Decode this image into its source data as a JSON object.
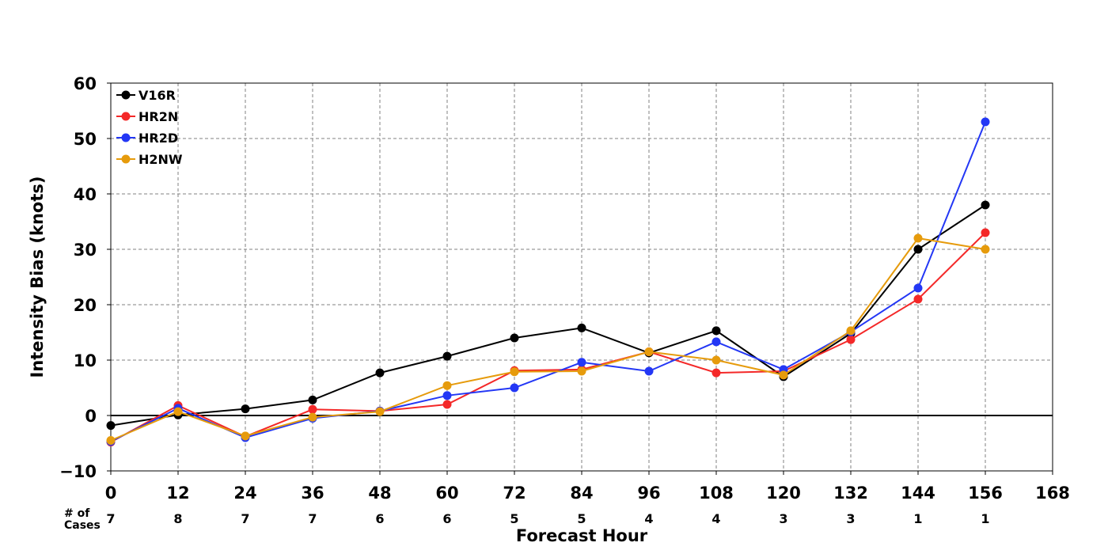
{
  "chart_data": {
    "type": "line",
    "title": "",
    "xlabel": "Forecast Hour",
    "ylabel": "Intensity Bias (knots)",
    "xlim": [
      0,
      168
    ],
    "ylim": [
      -10,
      60
    ],
    "x_ticks": [
      0,
      12,
      24,
      36,
      48,
      60,
      72,
      84,
      96,
      108,
      120,
      132,
      144,
      156,
      168
    ],
    "x_tick_labels": [
      "0",
      "12",
      "24",
      "36",
      "48",
      "60",
      "72",
      "84",
      "96",
      "108",
      "120",
      "132",
      "144",
      "156",
      "168"
    ],
    "y_ticks": [
      -10,
      0,
      10,
      20,
      30,
      40,
      50,
      60
    ],
    "y_tick_labels": [
      "−10",
      "0",
      "10",
      "20",
      "30",
      "40",
      "50",
      "60"
    ],
    "grid": true,
    "zero_line": true,
    "legend_position": "top-left",
    "x": [
      0,
      12,
      24,
      36,
      48,
      60,
      72,
      84,
      96,
      108,
      120,
      132,
      144,
      156
    ],
    "series": [
      {
        "name": "V16R",
        "color": "#000000",
        "values": [
          -1.8,
          0.1,
          1.2,
          2.8,
          7.7,
          10.7,
          14.0,
          15.8,
          11.3,
          15.3,
          7.0,
          14.8,
          30.0,
          38.0
        ]
      },
      {
        "name": "HR2N",
        "color": "#f42828",
        "values": [
          -4.8,
          1.8,
          -3.8,
          1.1,
          0.8,
          2.0,
          8.1,
          8.3,
          11.5,
          7.7,
          8.0,
          13.7,
          21.0,
          33.0
        ]
      },
      {
        "name": "HR2D",
        "color": "#2337f5",
        "values": [
          -4.7,
          1.3,
          -4.0,
          -0.5,
          0.8,
          3.6,
          5.0,
          9.6,
          8.0,
          13.3,
          8.3,
          15.1,
          23.0,
          53.0
        ]
      },
      {
        "name": "H2NW",
        "color": "#e69b0c",
        "values": [
          -4.5,
          0.7,
          -3.7,
          -0.3,
          0.7,
          5.4,
          7.9,
          8.0,
          11.5,
          10.0,
          7.3,
          15.3,
          32.0,
          30.0
        ]
      }
    ],
    "cases": {
      "label_line1": "# of",
      "label_line2": "Cases",
      "values": [
        "7",
        "8",
        "7",
        "7",
        "6",
        "6",
        "5",
        "5",
        "4",
        "4",
        "3",
        "3",
        "1",
        "1"
      ]
    }
  }
}
